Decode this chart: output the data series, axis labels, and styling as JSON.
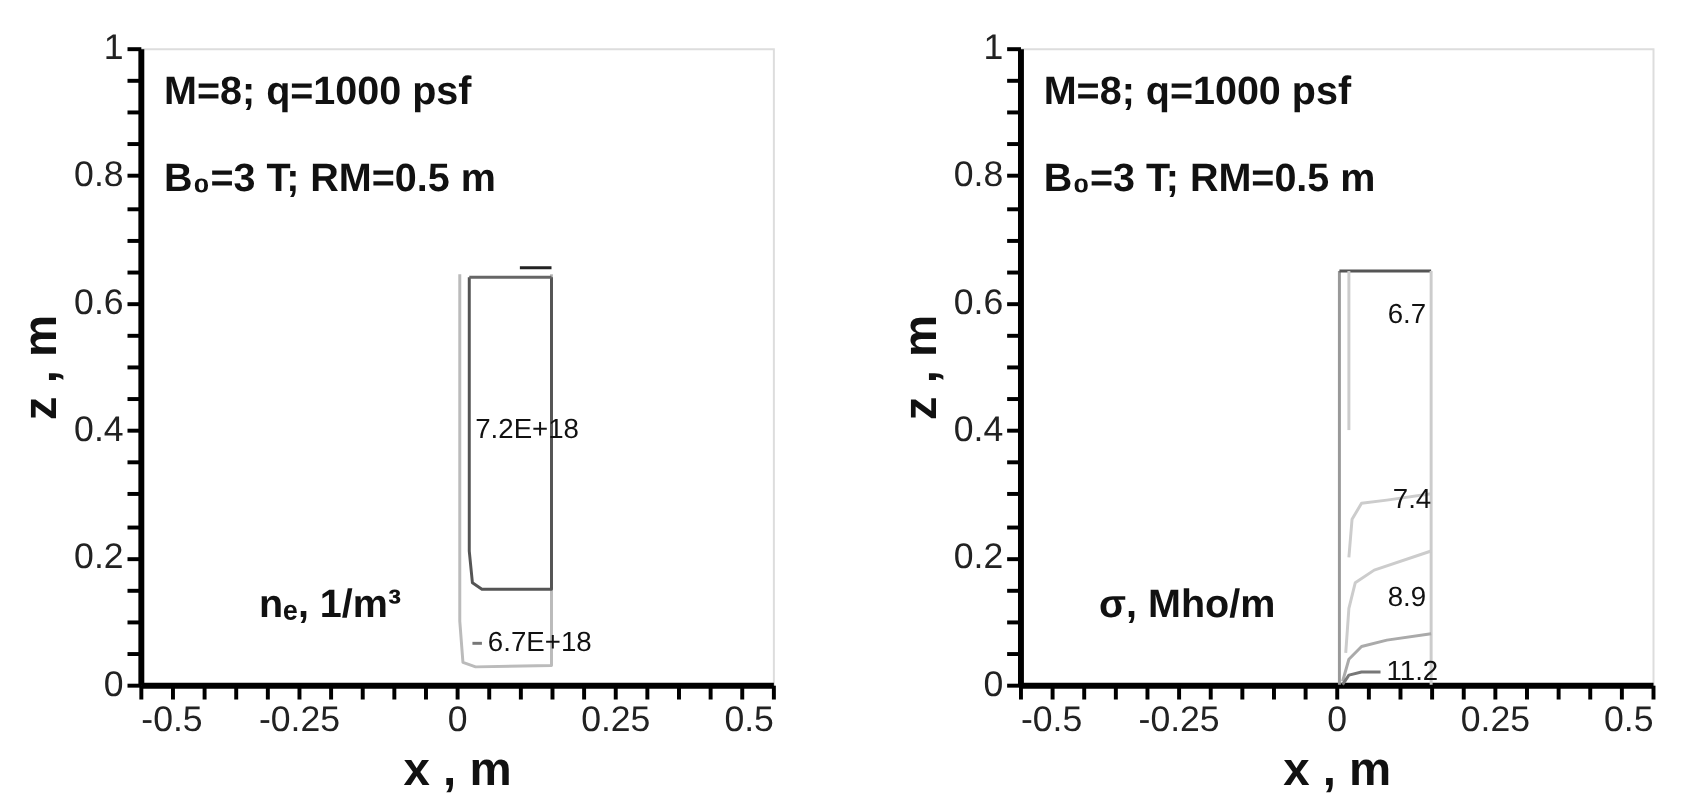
{
  "chart_data": [
    {
      "type": "line",
      "xlabel": "x , m",
      "ylabel": "z , m",
      "grid": false,
      "marker": "none",
      "line_style": "solid",
      "xlim": [
        -0.5,
        0.5
      ],
      "ylim": [
        0,
        1
      ],
      "xticks": [
        -0.5,
        {
          "value": -0.45,
          "label": null
        },
        {
          "value": -0.4,
          "label": null
        },
        {
          "value": -0.35,
          "label": null
        },
        {
          "value": -0.3,
          "label": null
        },
        -0.25,
        {
          "value": -0.2,
          "label": null
        },
        {
          "value": -0.15,
          "label": null
        },
        {
          "value": -0.1,
          "label": null
        },
        {
          "value": -0.05,
          "label": null
        },
        0,
        {
          "value": 0.05,
          "label": null
        },
        {
          "value": 0.1,
          "label": null
        },
        {
          "value": 0.15,
          "label": null
        },
        {
          "value": 0.2,
          "label": null
        },
        0.25,
        {
          "value": 0.3,
          "label": null
        },
        {
          "value": 0.35,
          "label": null
        },
        {
          "value": 0.4,
          "label": null
        },
        {
          "value": 0.45,
          "label": null
        },
        0.5
      ],
      "yticks": [
        0,
        {
          "value": 0.05,
          "label": null
        },
        {
          "value": 0.1,
          "label": null
        },
        {
          "value": 0.15,
          "label": null
        },
        0.2,
        {
          "value": 0.25,
          "label": null
        },
        {
          "value": 0.3,
          "label": null
        },
        {
          "value": 0.35,
          "label": null
        },
        0.4,
        {
          "value": 0.45,
          "label": null
        },
        {
          "value": 0.5,
          "label": null
        },
        {
          "value": 0.55,
          "label": null
        },
        0.6,
        {
          "value": 0.65,
          "label": null
        },
        {
          "value": 0.7,
          "label": null
        },
        {
          "value": 0.75,
          "label": null
        },
        0.8,
        {
          "value": 0.85,
          "label": null
        },
        {
          "value": 0.9,
          "label": null
        },
        {
          "value": 0.95,
          "label": null
        },
        1
      ],
      "series": [
        {
          "color": "#bbbbbb",
          "x": [
            0.005,
            0.005,
            0.01,
            0.03,
            0.15,
            0.15
          ],
          "values": [
            0.645,
            0.1,
            0.035,
            0.028,
            0.03,
            0.645
          ]
        },
        {
          "color": "#555555",
          "x": [
            0.02,
            0.02,
            0.025,
            0.04,
            0.15,
            0.15
          ],
          "values": [
            0.64,
            0.21,
            0.16,
            0.15,
            0.15,
            0.64
          ]
        },
        {
          "color": "#666666",
          "x": [
            0.02,
            0.15
          ],
          "values": [
            0.64,
            0.64
          ]
        },
        {
          "color": "#222222",
          "x": [
            0.1,
            0.15
          ],
          "values": [
            0.655,
            0.655
          ]
        },
        {
          "color": "#777777",
          "x": [
            0.025,
            0.04
          ],
          "values": [
            0.065,
            0.065
          ]
        }
      ],
      "annotations": [
        "M=8; q=1000 psf",
        "B₀=3 T; RM=0.5 m",
        "nₑ, 1/m³",
        {
          "text": "7.2E+18",
          "x": 0.02,
          "y": 0.4
        },
        {
          "text": "6.7E+18",
          "x": 0.04,
          "y": 0.065
        }
      ]
    },
    {
      "type": "line",
      "xlabel": "x , m",
      "ylabel": "z , m",
      "grid": false,
      "marker": "none",
      "line_style": "solid",
      "xlim": [
        -0.5,
        0.5
      ],
      "ylim": [
        0,
        1
      ],
      "xticks": [
        -0.5,
        {
          "value": -0.45,
          "label": null
        },
        {
          "value": -0.4,
          "label": null
        },
        {
          "value": -0.35,
          "label": null
        },
        {
          "value": -0.3,
          "label": null
        },
        -0.25,
        {
          "value": -0.2,
          "label": null
        },
        {
          "value": -0.15,
          "label": null
        },
        {
          "value": -0.1,
          "label": null
        },
        {
          "value": -0.05,
          "label": null
        },
        0,
        {
          "value": 0.05,
          "label": null
        },
        {
          "value": 0.1,
          "label": null
        },
        {
          "value": 0.15,
          "label": null
        },
        {
          "value": 0.2,
          "label": null
        },
        0.25,
        {
          "value": 0.3,
          "label": null
        },
        {
          "value": 0.35,
          "label": null
        },
        {
          "value": 0.4,
          "label": null
        },
        {
          "value": 0.45,
          "label": null
        },
        0.5
      ],
      "yticks": [
        0,
        {
          "value": 0.05,
          "label": null
        },
        {
          "value": 0.1,
          "label": null
        },
        {
          "value": 0.15,
          "label": null
        },
        0.2,
        {
          "value": 0.25,
          "label": null
        },
        {
          "value": 0.3,
          "label": null
        },
        {
          "value": 0.35,
          "label": null
        },
        0.4,
        {
          "value": 0.45,
          "label": null
        },
        {
          "value": 0.5,
          "label": null
        },
        {
          "value": 0.55,
          "label": null
        },
        0.6,
        {
          "value": 0.65,
          "label": null
        },
        {
          "value": 0.7,
          "label": null
        },
        {
          "value": 0.75,
          "label": null
        },
        0.8,
        {
          "value": 0.85,
          "label": null
        },
        {
          "value": 0.9,
          "label": null
        },
        {
          "value": 0.95,
          "label": null
        },
        1
      ],
      "series": [
        {
          "color": "#999999",
          "x": [
            0.005,
            0.005
          ],
          "values": [
            0.65,
            0.0
          ]
        },
        {
          "color": "#555555",
          "x": [
            0.005,
            0.15
          ],
          "values": [
            0.65,
            0.65
          ]
        },
        {
          "color": "#cccccc",
          "x": [
            0.15,
            0.15
          ],
          "values": [
            0.65,
            0.0
          ]
        },
        {
          "color": "#cccccc",
          "x": [
            0.02,
            0.02
          ],
          "values": [
            0.65,
            0.4
          ]
        },
        {
          "color": "#cccccc",
          "x": [
            0.02,
            0.025,
            0.04,
            0.08,
            0.15
          ],
          "values": [
            0.2,
            0.26,
            0.285,
            0.29,
            0.3
          ]
        },
        {
          "color": "#cccccc",
          "x": [
            0.015,
            0.02,
            0.03,
            0.06,
            0.15
          ],
          "values": [
            0.05,
            0.12,
            0.16,
            0.18,
            0.21
          ]
        },
        {
          "color": "#aaaaaa",
          "x": [
            0.01,
            0.02,
            0.04,
            0.08,
            0.15
          ],
          "values": [
            0.005,
            0.04,
            0.06,
            0.07,
            0.08
          ]
        },
        {
          "color": "#777777",
          "x": [
            0.01,
            0.02,
            0.04,
            0.07
          ],
          "values": [
            0.0,
            0.015,
            0.02,
            0.02
          ]
        }
      ],
      "annotations": [
        "M=8; q=1000 psf",
        "B₀=3 T; RM=0.5 m",
        "σ, Mho/m",
        "6.7",
        {
          "text": "7.4",
          "x": 0.08,
          "y": 0.29
        },
        "8.9",
        {
          "text": "11.2",
          "x": 0.07,
          "y": 0.02
        }
      ]
    }
  ]
}
